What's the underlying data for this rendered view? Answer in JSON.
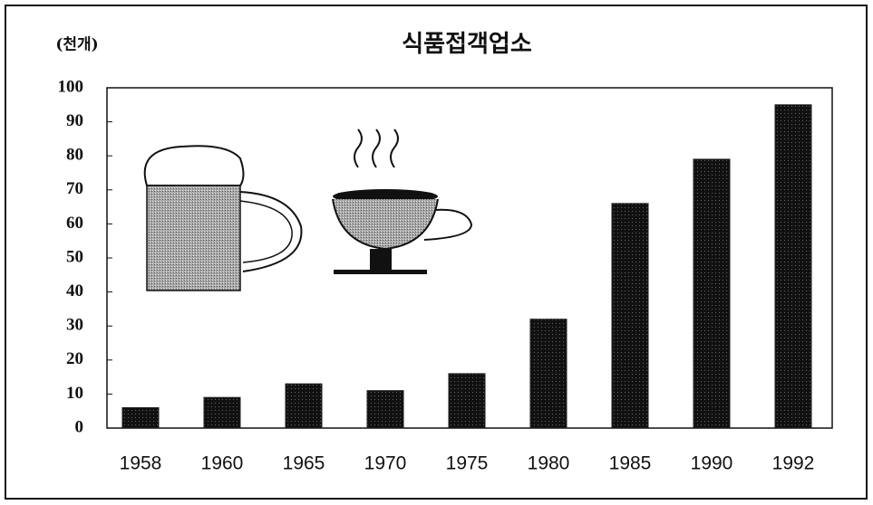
{
  "chart_data": {
    "type": "bar",
    "title": "식품접객업소",
    "y_label": "(천개)",
    "categories": [
      "1958",
      "1960",
      "1965",
      "1970",
      "1975",
      "1980",
      "1985",
      "1990",
      "1992"
    ],
    "values": [
      6,
      9,
      13,
      11,
      16,
      32,
      66,
      79,
      95
    ],
    "color": "#1e1e1e",
    "ylim": [
      0,
      100
    ],
    "yticks": [
      0,
      10,
      20,
      30,
      40,
      50,
      60,
      70,
      80,
      90,
      100
    ],
    "grid": false
  }
}
